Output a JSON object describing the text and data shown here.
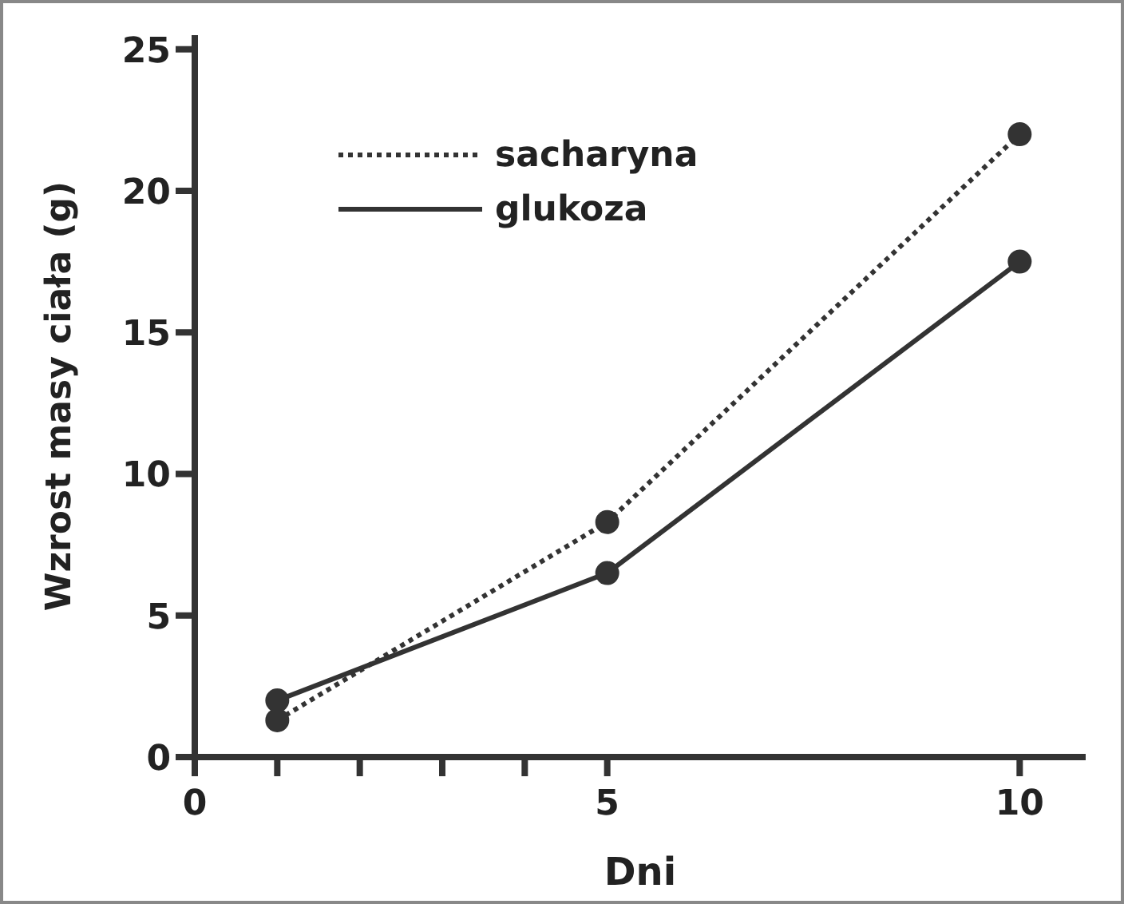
{
  "chart_data": {
    "type": "line",
    "xlabel": "Dni",
    "ylabel": "Wzrost masy ciała (g)",
    "x": [
      1,
      5,
      10
    ],
    "series": [
      {
        "name": "sacharyna",
        "color": "#333333",
        "values": [
          1.3,
          8.3,
          22.0
        ],
        "line_style": "dotted"
      },
      {
        "name": "glukoza",
        "color": "#333333",
        "values": [
          2.0,
          6.5,
          17.5
        ],
        "line_style": "solid"
      }
    ],
    "xlim": [
      0,
      10.8
    ],
    "xticks": [
      0,
      {
        "value": 1,
        "label": null
      },
      {
        "value": 2,
        "label": null
      },
      {
        "value": 3,
        "label": null
      },
      {
        "value": 4,
        "label": null
      },
      5,
      10
    ],
    "ylim": [
      0,
      25.5
    ],
    "yticks": [
      0,
      5,
      10,
      15,
      20,
      25
    ],
    "grid": false,
    "legend": "top left",
    "marker": "circle"
  }
}
